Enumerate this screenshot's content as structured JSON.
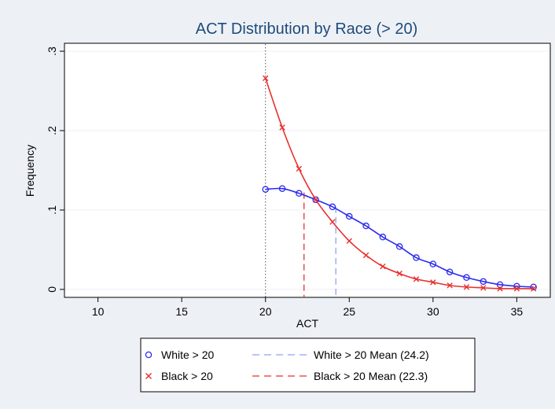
{
  "chart_data": {
    "type": "line",
    "title": "ACT Distribution by Race (> 20)",
    "xlabel": "ACT",
    "ylabel": "Frequency",
    "xlim": [
      8,
      37
    ],
    "ylim": [
      -0.01,
      0.31
    ],
    "xticks": [
      10,
      15,
      20,
      25,
      30,
      35
    ],
    "xtick_labels": [
      "10",
      "15",
      "20",
      "25",
      "30",
      "35"
    ],
    "yticks": [
      0,
      0.1,
      0.2,
      0.3
    ],
    "ytick_labels": [
      "0",
      ".1",
      ".2",
      ".3"
    ],
    "grid": "horizontal",
    "legend_position": "bottom",
    "cutoff_x": 20,
    "series": [
      {
        "name": "White > 20",
        "marker": "circle",
        "color": "#2a2af2",
        "x": [
          20,
          21,
          22,
          23,
          24,
          25,
          26,
          27,
          28,
          29,
          30,
          31,
          32,
          33,
          34,
          35,
          36
        ],
        "y": [
          0.126,
          0.127,
          0.121,
          0.113,
          0.104,
          0.092,
          0.08,
          0.066,
          0.054,
          0.04,
          0.032,
          0.022,
          0.015,
          0.01,
          0.006,
          0.004,
          0.003
        ]
      },
      {
        "name": "Black > 20",
        "marker": "x",
        "color": "#e8302e",
        "x": [
          20,
          21,
          22,
          23,
          24,
          25,
          26,
          27,
          28,
          29,
          30,
          31,
          32,
          33,
          34,
          35,
          36
        ],
        "y": [
          0.266,
          0.204,
          0.152,
          0.113,
          0.085,
          0.061,
          0.043,
          0.029,
          0.02,
          0.013,
          0.009,
          0.005,
          0.003,
          0.002,
          0.001,
          0.001,
          0.001
        ]
      }
    ],
    "mean_lines": [
      {
        "name": "White > 20 Mean (24.2)",
        "x": 24.2,
        "y_top": 0.104,
        "color": "#8ea5f0"
      },
      {
        "name": "Black > 20 Mean (22.3)",
        "x": 22.3,
        "y_top": 0.122,
        "color": "#e8302e"
      }
    ]
  },
  "colors": {
    "outer_background": "#edf1f6",
    "plot_background": "#ffffff",
    "title": "#1f4a78",
    "grid": "#eef1f5",
    "white_series": "#2a2af2",
    "black_series": "#e8302e",
    "white_mean": "#8ea5f0"
  }
}
